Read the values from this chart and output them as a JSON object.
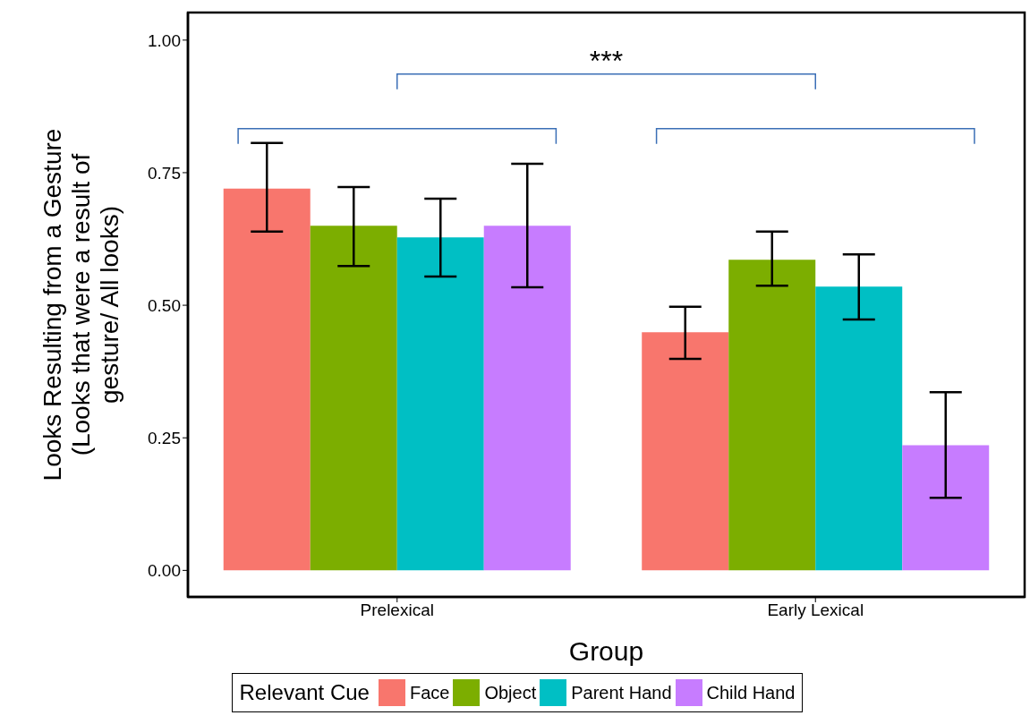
{
  "chart_data": {
    "type": "bar",
    "xlabel": "Group",
    "ylabel": "Looks Resulting from a Gesture\n(Looks that were a result of\ngesture/ All looks)",
    "legend_title": "Relevant Cue",
    "legend": "bottom",
    "categories": [
      "Prelexical",
      "Early Lexical"
    ],
    "ylim": [
      -0.05,
      1.052
    ],
    "yticks": [
      {
        "value": 0,
        "label": "0.00"
      },
      {
        "value": 0.25,
        "label": "0.25"
      },
      {
        "value": 0.5,
        "label": "0.50"
      },
      {
        "value": 0.75,
        "label": "0.75"
      },
      {
        "value": 1,
        "label": "1.00"
      }
    ],
    "grid": false,
    "series": [
      {
        "name": "Face",
        "color": "#f8766d",
        "values": [
          0.72,
          0.449
        ],
        "errors": [
          [
            0.639,
            0.806
          ],
          [
            0.399,
            0.497
          ]
        ]
      },
      {
        "name": "Object",
        "color": "#7cae00",
        "values": [
          0.65,
          0.586
        ],
        "errors": [
          [
            0.574,
            0.723
          ],
          [
            0.537,
            0.639
          ]
        ]
      },
      {
        "name": "Parent Hand",
        "color": "#00bfc4",
        "values": [
          0.628,
          0.535
        ],
        "errors": [
          [
            0.554,
            0.701
          ],
          [
            0.473,
            0.596
          ]
        ]
      },
      {
        "name": "Child Hand",
        "color": "#c77cff",
        "values": [
          0.65,
          0.236
        ],
        "errors": [
          [
            0.534,
            0.767
          ],
          [
            0.137,
            0.336
          ]
        ]
      }
    ],
    "annotations": [
      "***"
    ]
  }
}
